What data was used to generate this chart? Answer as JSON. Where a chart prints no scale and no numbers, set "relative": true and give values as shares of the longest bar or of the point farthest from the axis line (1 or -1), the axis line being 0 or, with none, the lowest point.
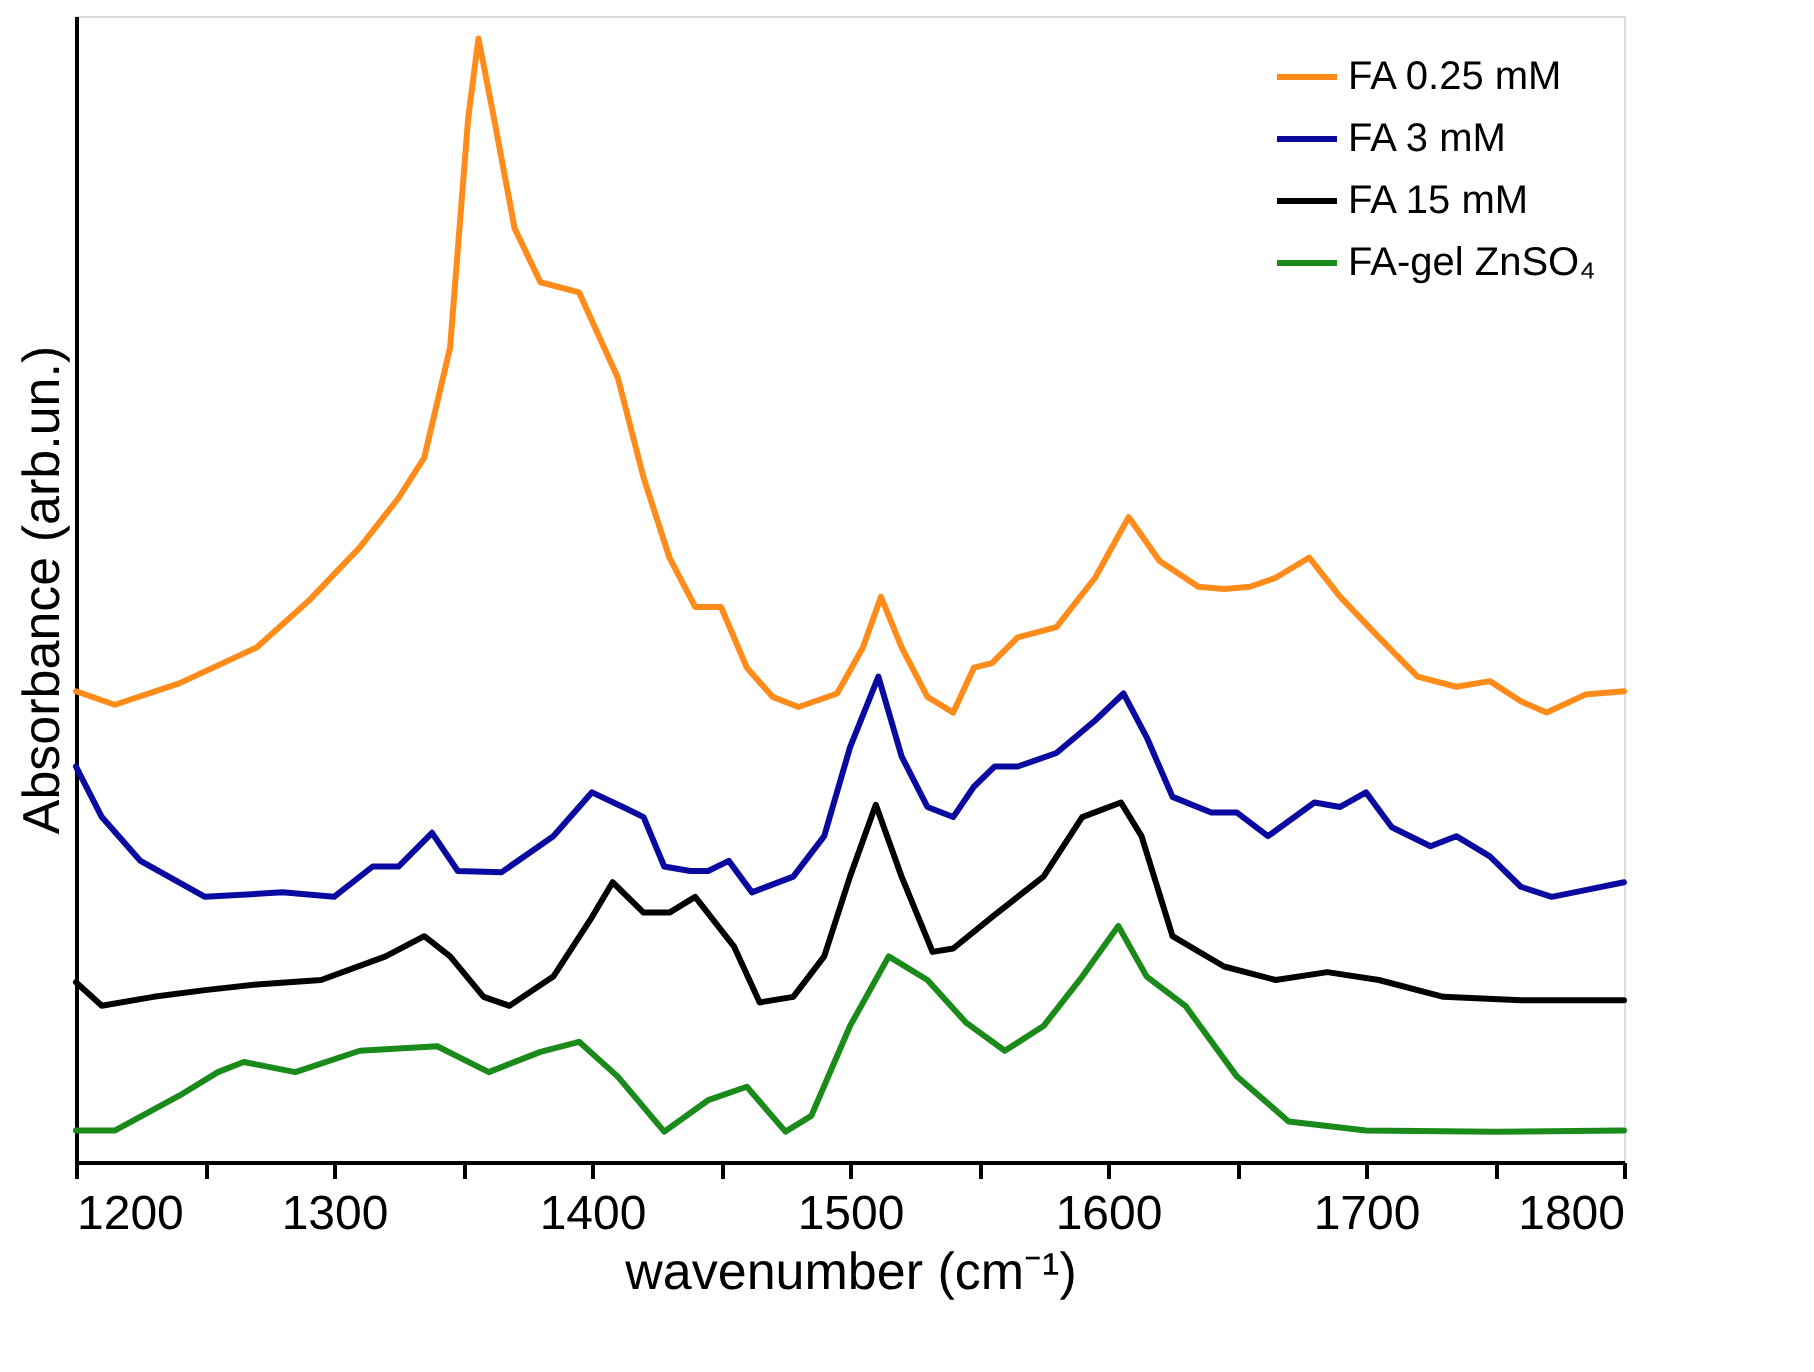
{
  "chart_data": {
    "type": "line",
    "relative": true,
    "xlabel": "wavenumber (cm⁻¹)",
    "ylabel": "Absorbance (arb.un.)",
    "xlim": [
      1200,
      1800
    ],
    "xticks": [
      1200,
      {
        "value": 1250,
        "label": null
      },
      1300,
      {
        "value": 1350,
        "label": null
      },
      1400,
      {
        "value": 1450,
        "label": null
      },
      1500,
      {
        "value": 1550,
        "label": null
      },
      1600,
      {
        "value": 1650,
        "label": null
      },
      1700,
      {
        "value": 1750,
        "label": null
      },
      1800
    ],
    "legend": "top right",
    "grid": false,
    "line_style": "solid",
    "marker": "none",
    "series": [
      {
        "name": "FA 0.25 mM",
        "color": "#ff8c1a",
        "x": [
          1200,
          1215,
          1240,
          1270,
          1290,
          1310,
          1325,
          1335,
          1345,
          1352,
          1356,
          1362,
          1370,
          1380,
          1395,
          1410,
          1420,
          1430,
          1440,
          1450,
          1460,
          1470,
          1480,
          1495,
          1505,
          1512,
          1520,
          1530,
          1540,
          1548,
          1555,
          1565,
          1580,
          1595,
          1608,
          1620,
          1635,
          1645,
          1655,
          1665,
          1678,
          1690,
          1705,
          1720,
          1735,
          1748,
          1760,
          1770,
          1785,
          1800
        ],
        "values": [
          0.419,
          0.407,
          0.426,
          0.458,
          0.499,
          0.547,
          0.591,
          0.627,
          0.725,
          0.929,
          1.0,
          0.929,
          0.831,
          0.783,
          0.774,
          0.698,
          0.609,
          0.538,
          0.494,
          0.494,
          0.44,
          0.414,
          0.405,
          0.417,
          0.458,
          0.503,
          0.458,
          0.414,
          0.4,
          0.44,
          0.444,
          0.467,
          0.476,
          0.52,
          0.574,
          0.535,
          0.512,
          0.51,
          0.512,
          0.52,
          0.538,
          0.503,
          0.467,
          0.432,
          0.423,
          0.428,
          0.41,
          0.4,
          0.416,
          0.419
        ]
      },
      {
        "name": "FA 3 mM",
        "color": "#0a0aa0",
        "x": [
          1200,
          1210,
          1225,
          1250,
          1280,
          1300,
          1315,
          1325,
          1338,
          1348,
          1365,
          1385,
          1400,
          1412,
          1420,
          1428,
          1438,
          1445,
          1453,
          1462,
          1478,
          1490,
          1500,
          1511,
          1520,
          1530,
          1540,
          1548,
          1556,
          1565,
          1580,
          1595,
          1606,
          1615,
          1625,
          1640,
          1650,
          1662,
          1680,
          1690,
          1700,
          1710,
          1725,
          1735,
          1748,
          1760,
          1772,
          1785,
          1800
        ],
        "values": [
          0.352,
          0.307,
          0.268,
          0.236,
          0.24,
          0.236,
          0.263,
          0.263,
          0.293,
          0.259,
          0.258,
          0.29,
          0.329,
          0.316,
          0.307,
          0.263,
          0.259,
          0.259,
          0.268,
          0.24,
          0.254,
          0.29,
          0.369,
          0.432,
          0.361,
          0.316,
          0.307,
          0.334,
          0.352,
          0.352,
          0.364,
          0.393,
          0.417,
          0.378,
          0.325,
          0.311,
          0.311,
          0.29,
          0.32,
          0.316,
          0.329,
          0.298,
          0.281,
          0.29,
          0.272,
          0.245,
          0.236,
          0.242,
          0.249
        ]
      },
      {
        "name": "FA 15 mM",
        "color": "#000000",
        "x": [
          1200,
          1210,
          1230,
          1250,
          1270,
          1295,
          1320,
          1335,
          1345,
          1358,
          1368,
          1385,
          1400,
          1408,
          1420,
          1430,
          1440,
          1455,
          1465,
          1478,
          1490,
          1500,
          1510,
          1520,
          1532,
          1540,
          1555,
          1575,
          1590,
          1605,
          1613,
          1625,
          1645,
          1665,
          1685,
          1705,
          1730,
          1760,
          1800
        ],
        "values": [
          0.16,
          0.139,
          0.147,
          0.153,
          0.158,
          0.162,
          0.183,
          0.201,
          0.183,
          0.147,
          0.139,
          0.165,
          0.218,
          0.249,
          0.222,
          0.222,
          0.236,
          0.192,
          0.142,
          0.147,
          0.183,
          0.254,
          0.318,
          0.254,
          0.187,
          0.19,
          0.218,
          0.254,
          0.307,
          0.32,
          0.29,
          0.201,
          0.174,
          0.162,
          0.169,
          0.162,
          0.147,
          0.144,
          0.144
        ]
      },
      {
        "name": "FA-gel ZnSO₄",
        "color": "#1a8a1a",
        "x": [
          1200,
          1215,
          1240,
          1255,
          1265,
          1285,
          1310,
          1340,
          1360,
          1380,
          1395,
          1410,
          1428,
          1445,
          1460,
          1475,
          1485,
          1500,
          1515,
          1530,
          1545,
          1560,
          1575,
          1590,
          1604,
          1615,
          1630,
          1650,
          1670,
          1700,
          1750,
          1800
        ],
        "values": [
          0.028,
          0.028,
          0.059,
          0.08,
          0.089,
          0.08,
          0.099,
          0.103,
          0.08,
          0.098,
          0.107,
          0.076,
          0.027,
          0.055,
          0.067,
          0.027,
          0.041,
          0.121,
          0.183,
          0.162,
          0.124,
          0.099,
          0.121,
          0.165,
          0.21,
          0.165,
          0.139,
          0.076,
          0.036,
          0.028,
          0.027,
          0.028
        ]
      }
    ]
  }
}
